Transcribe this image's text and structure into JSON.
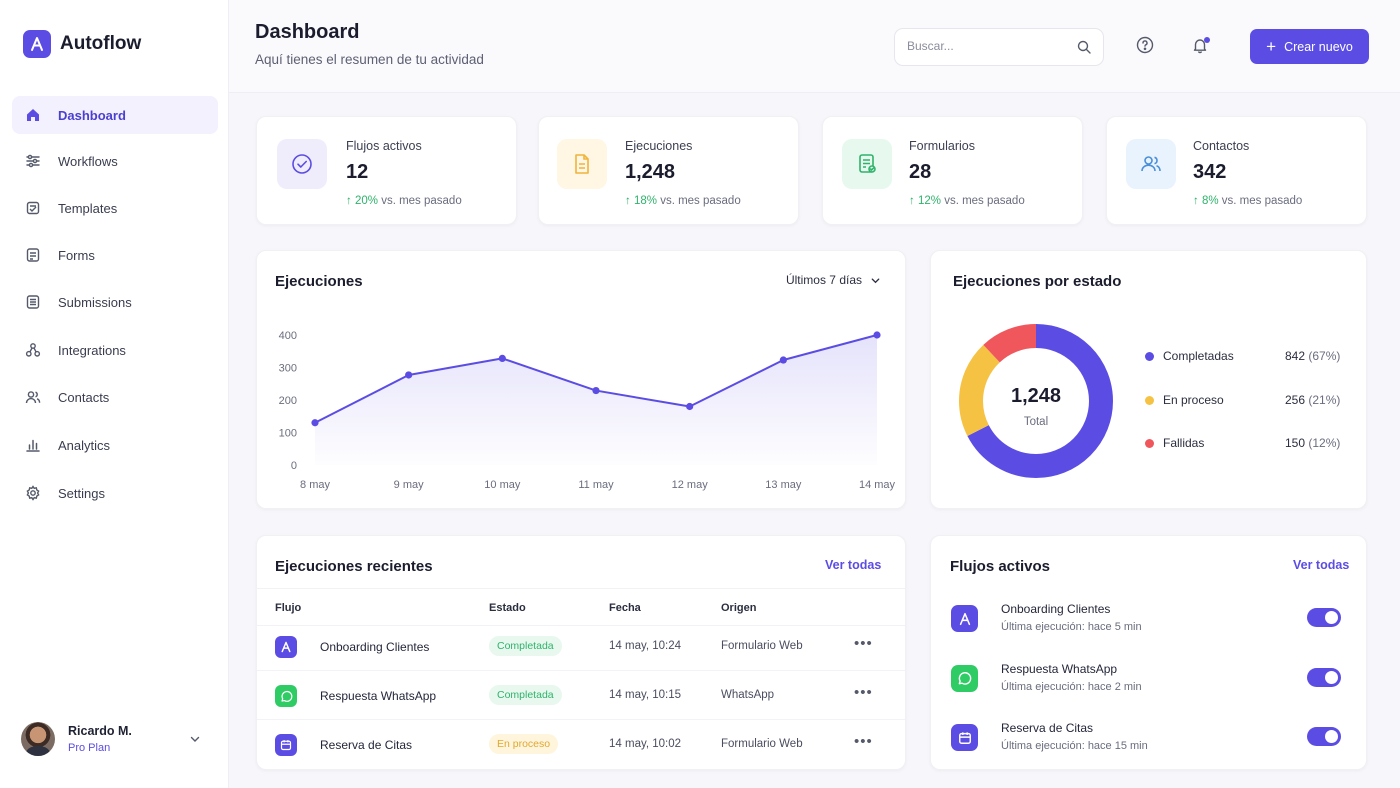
{
  "brand": {
    "name": "Autoflow",
    "accent": "#5b4de3"
  },
  "sidebar": {
    "items": [
      {
        "label": "Dashboard",
        "icon": "home-icon",
        "active": true
      },
      {
        "label": "Workflows",
        "icon": "sliders-icon"
      },
      {
        "label": "Templates",
        "icon": "template-icon"
      },
      {
        "label": "Forms",
        "icon": "form-icon"
      },
      {
        "label": "Submissions",
        "icon": "submissions-icon"
      },
      {
        "label": "Integrations",
        "icon": "integrations-icon"
      },
      {
        "label": "Contacts",
        "icon": "contacts-icon"
      },
      {
        "label": "Analytics",
        "icon": "bar-chart-icon"
      },
      {
        "label": "Settings",
        "icon": "gear-icon"
      }
    ]
  },
  "user": {
    "name": "Ricardo M.",
    "plan": "Pro Plan"
  },
  "header": {
    "title": "Dashboard",
    "subtitle": "Aquí tienes el resumen de tu actividad",
    "search_placeholder": "Buscar...",
    "create_label": "Crear nuevo"
  },
  "stats": [
    {
      "label": "Flujos activos",
      "value": "12",
      "pct": "20%",
      "note": "vs. mes pasado",
      "icon": "check-circle-icon",
      "bg": "#efedfc",
      "color": "#5b4de3"
    },
    {
      "label": "Ejecuciones",
      "value": "1,248",
      "pct": "18%",
      "note": "vs. mes pasado",
      "icon": "document-icon",
      "bg": "#fff6e3",
      "color": "#f0b43a"
    },
    {
      "label": "Formularios",
      "value": "28",
      "pct": "12%",
      "note": "vs. mes pasado",
      "icon": "form-check-icon",
      "bg": "#e7f8ee",
      "color": "#2fb36b"
    },
    {
      "label": "Contactos",
      "value": "342",
      "pct": "8%",
      "note": "vs. mes pasado",
      "icon": "users-icon",
      "bg": "#e9f3fd",
      "color": "#4a8fd8"
    }
  ],
  "executions_chart": {
    "title": "Ejecuciones",
    "range_label": "Últimos 7 días"
  },
  "chart_data": {
    "type": "area",
    "categories": [
      "8 may",
      "9 may",
      "10 may",
      "11 may",
      "12 may",
      "13 may",
      "14 may"
    ],
    "values": [
      130,
      277,
      328,
      229,
      180,
      323,
      400
    ],
    "yticks": [
      0,
      100,
      200,
      300,
      400
    ],
    "ylim": [
      0,
      400
    ],
    "grid": false,
    "color": "#5b4de3"
  },
  "status_chart": {
    "title": "Ejecuciones por estado",
    "total": "1,248",
    "total_label": "Total",
    "segments": [
      {
        "name": "Completadas",
        "value": "842",
        "pct": "(67%)",
        "num": 842,
        "color": "#5b4de3"
      },
      {
        "name": "En proceso",
        "value": "256",
        "pct": "(21%)",
        "num": 256,
        "color": "#f5c244"
      },
      {
        "name": "Fallidas",
        "value": "150",
        "pct": "(12%)",
        "num": 150,
        "color": "#f0575d"
      }
    ]
  },
  "recent": {
    "title": "Ejecuciones recientes",
    "see_all": "Ver todas",
    "columns": [
      "Flujo",
      "Estado",
      "Fecha",
      "Origen"
    ],
    "rows": [
      {
        "flow": "Onboarding Clientes",
        "status": "Completada",
        "status_type": "done",
        "date": "14 may, 10:24",
        "origin": "Formulario Web",
        "icon": "autoflow-icon",
        "icon_bg": "#5b4de3"
      },
      {
        "flow": "Respuesta WhatsApp",
        "status": "Completada",
        "status_type": "done",
        "date": "14 may, 10:15",
        "origin": "WhatsApp",
        "icon": "whatsapp-icon",
        "icon_bg": "#2fcc66"
      },
      {
        "flow": "Reserva de Citas",
        "status": "En proceso",
        "status_type": "proc",
        "date": "14 may, 10:02",
        "origin": "Formulario Web",
        "icon": "calendar-icon",
        "icon_bg": "#5b4de3"
      }
    ],
    "more": "•••"
  },
  "active_flows": {
    "title": "Flujos activos",
    "see_all": "Ver todas",
    "items": [
      {
        "name": "Onboarding Clientes",
        "status": "Última ejecución: hace 5 min",
        "icon": "autoflow-icon",
        "icon_bg": "#5b4de3",
        "enabled": true
      },
      {
        "name": "Respuesta WhatsApp",
        "status": "Última ejecución: hace 2 min",
        "icon": "whatsapp-icon",
        "icon_bg": "#2fcc66",
        "enabled": true
      },
      {
        "name": "Reserva de Citas",
        "status": "Última ejecución: hace 15 min",
        "icon": "calendar-icon",
        "icon_bg": "#5b4de3",
        "enabled": true
      }
    ]
  }
}
